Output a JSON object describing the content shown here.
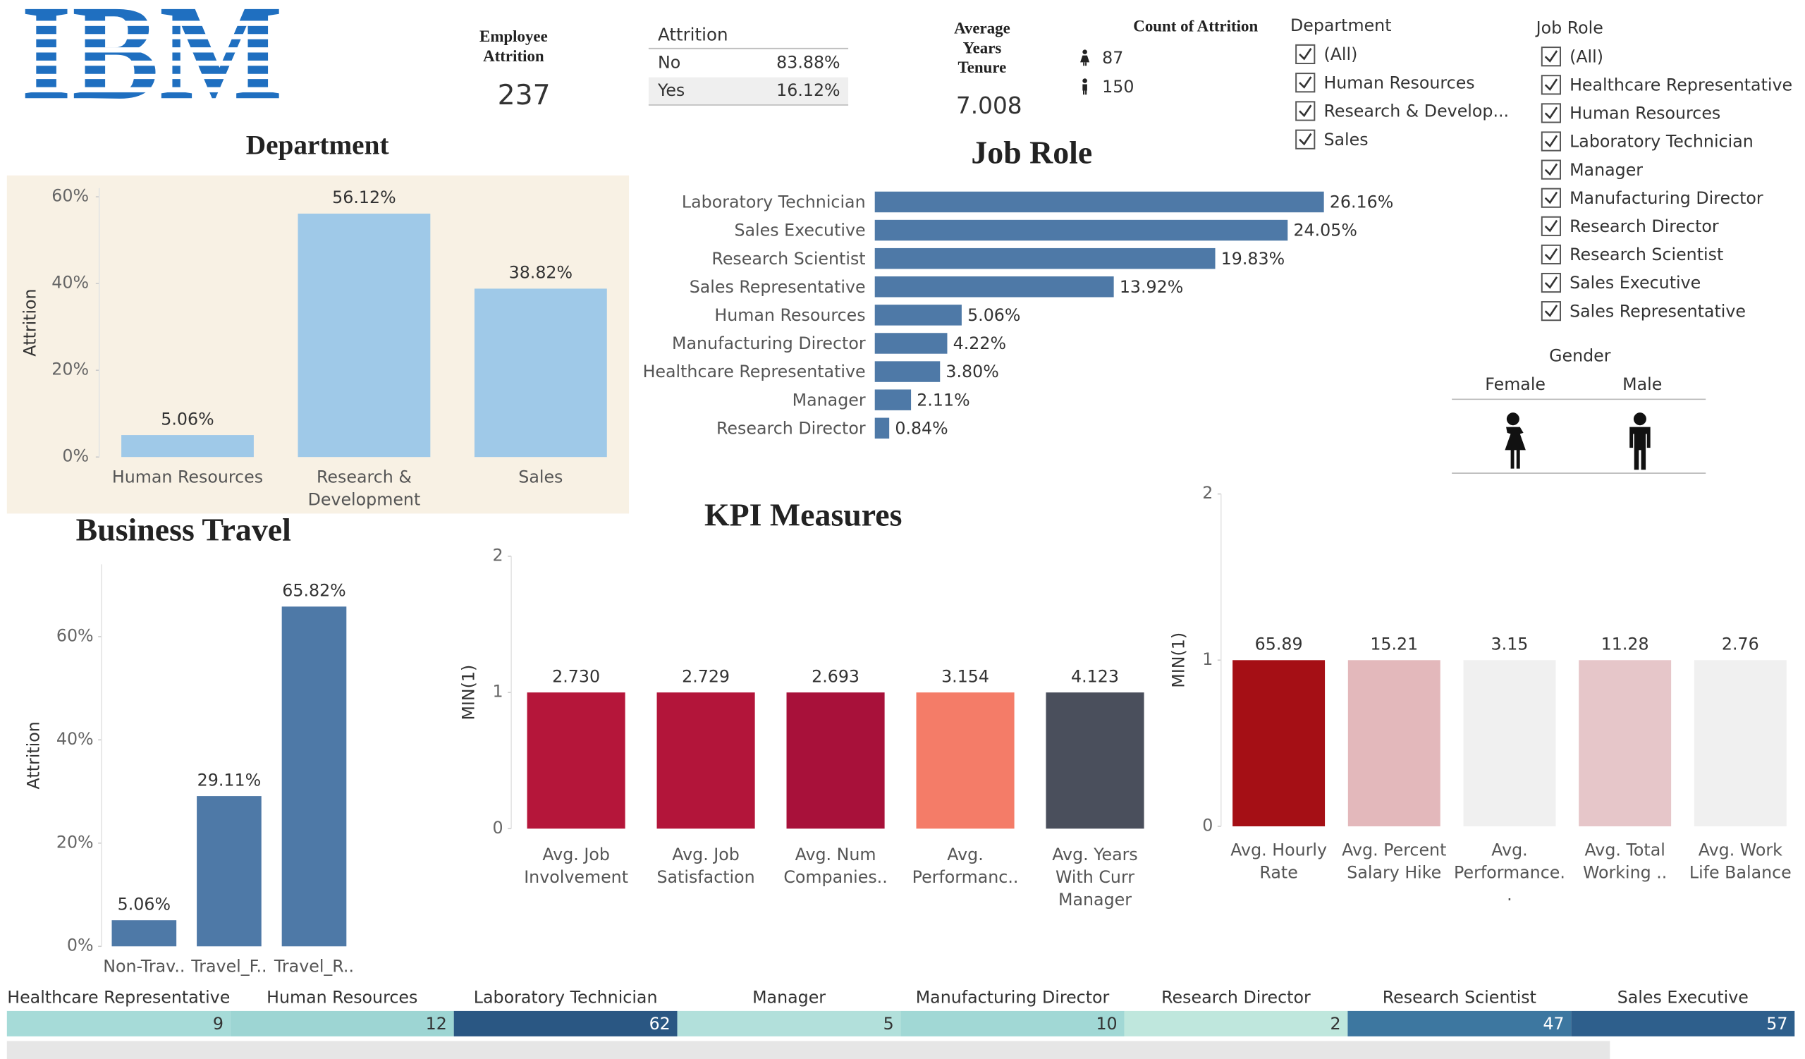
{
  "header": {
    "logo": "IBM"
  },
  "kpis": {
    "employee_attrition": {
      "label": "Employee Attrition",
      "value": 237
    },
    "attrition_table": {
      "title": "Attrition",
      "rows": [
        [
          "No",
          "83.88%"
        ],
        [
          "Yes",
          "16.12%"
        ]
      ]
    },
    "average_tenure": {
      "label": "Average Years Tenure",
      "value": "7.008"
    },
    "count_of_attrition": {
      "label": "Count of Attrition",
      "female": 87,
      "male": 150
    }
  },
  "filters": {
    "department": {
      "title": "Department",
      "items": [
        "(All)",
        "Human Resources",
        "Research & Develop...",
        "Sales"
      ]
    },
    "job_role": {
      "title": "Job Role",
      "items": [
        "(All)",
        "Healthcare Representative",
        "Human Resources",
        "Laboratory Technician",
        "Manager",
        "Manufacturing Director",
        "Research Director",
        "Research Scientist",
        "Sales Executive",
        "Sales Representative"
      ]
    }
  },
  "gender": {
    "title": "Gender",
    "options": [
      "Female",
      "Male"
    ]
  },
  "chart_data": [
    {
      "type": "bar",
      "title": "Department",
      "y_label": "Attrition",
      "categories": [
        "Human Resources",
        "Research & Development",
        "Sales"
      ],
      "values": [
        5.06,
        56.12,
        38.82
      ],
      "value_labels": [
        "5.06%",
        "56.12%",
        "38.82%"
      ],
      "color": "#9fc9e8",
      "ylim": [
        0,
        62
      ],
      "yticks": [
        {
          "value": 0,
          "label": "0%"
        },
        {
          "value": 20,
          "label": "20%"
        },
        {
          "value": 40,
          "label": "40%"
        },
        {
          "value": 60,
          "label": "60%"
        }
      ]
    },
    {
      "type": "bar",
      "orientation": "horizontal",
      "title": "Job Role",
      "categories": [
        "Laboratory Technician",
        "Sales Executive",
        "Research Scientist",
        "Sales Representative",
        "Human Resources",
        "Manufacturing Director",
        "Healthcare Representative",
        "Manager",
        "Research Director"
      ],
      "values": [
        26.16,
        24.05,
        19.83,
        13.92,
        5.06,
        4.22,
        3.8,
        2.11,
        0.84
      ],
      "value_labels": [
        "26.16%",
        "24.05%",
        "19.83%",
        "13.92%",
        "5.06%",
        "4.22%",
        "3.80%",
        "2.11%",
        "0.84%"
      ],
      "color": "#4e79a7",
      "xlim": [
        0,
        32
      ]
    },
    {
      "type": "bar",
      "title": "Business Travel",
      "y_label": "Attrition",
      "categories": [
        "Non-Trav..",
        "Travel_F..",
        "Travel_R.."
      ],
      "values": [
        5.06,
        29.11,
        65.82
      ],
      "value_labels": [
        "5.06%",
        "29.11%",
        "65.82%"
      ],
      "color": "#4e79a7",
      "ylim": [
        0,
        74
      ],
      "yticks": [
        {
          "value": 0,
          "label": "0%"
        },
        {
          "value": 20,
          "label": "20%"
        },
        {
          "value": 40,
          "label": "40%"
        },
        {
          "value": 60,
          "label": "60%"
        }
      ]
    },
    {
      "type": "bar",
      "title": "KPI Measures",
      "y_label": "MIN(1)",
      "categories": [
        "Avg. Job Involvement",
        "Avg. Job Satisfaction",
        "Avg. Num Companies..",
        "Avg. Performanc..",
        "Avg. Years With Curr Manager"
      ],
      "values": [
        1,
        1,
        1,
        1,
        1
      ],
      "labels": [
        "2.730",
        "2.729",
        "2.693",
        "3.154",
        "4.123"
      ],
      "colors": [
        "#b5163a",
        "#b3153a",
        "#a8113a",
        "#f47c68",
        "#4a4f5c"
      ],
      "ylim": [
        0,
        2
      ],
      "yticks": [
        0,
        1,
        2
      ]
    },
    {
      "type": "bar",
      "y_label": "MIN(1)",
      "categories": [
        "Avg. Hourly Rate",
        "Avg. Percent Salary Hike",
        "Avg. Performance..",
        "Avg. Total Working ..",
        "Avg. Work Life Balance"
      ],
      "values": [
        1,
        1,
        1,
        1,
        1
      ],
      "labels": [
        "65.89",
        "15.21",
        "3.15",
        "11.28",
        "2.76"
      ],
      "colors": [
        "#a50f15",
        "#e3b8bb",
        "#f0f0f0",
        "#e6c6c9",
        "#f0f0f0"
      ],
      "ylim": [
        0,
        2
      ],
      "yticks": [
        0,
        1,
        2
      ]
    }
  ],
  "role_counts": {
    "categories": [
      "Healthcare Representative",
      "Human Resources",
      "Laboratory Technician",
      "Manager",
      "Manufacturing Director",
      "Research Director",
      "Research Scientist",
      "Sales Executive"
    ],
    "values": [
      9,
      12,
      62,
      5,
      10,
      2,
      47,
      57
    ],
    "colors": [
      "#a6dbd8",
      "#9dd5d3",
      "#2a5783",
      "#b2e0db",
      "#a1d8d5",
      "#bfe7dd",
      "#3d77a0",
      "#2e5f8c"
    ]
  }
}
